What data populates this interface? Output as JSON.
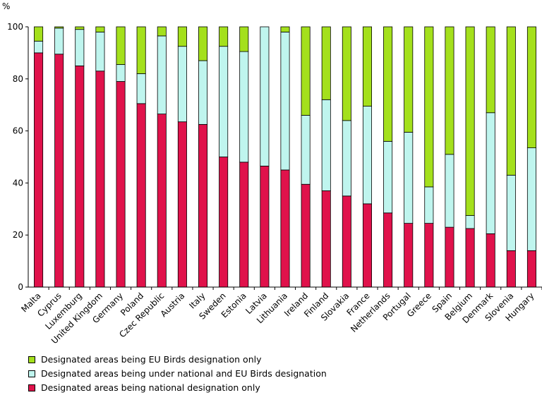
{
  "chart_data": {
    "type": "bar",
    "stacked": true,
    "ylabel": "%",
    "ylim": [
      0,
      100
    ],
    "yticks": [
      0,
      20,
      40,
      60,
      80,
      100
    ],
    "grid": false,
    "legend_position": "bottom-left",
    "categories": [
      "Malta",
      "Cyprus",
      "Luxemburg",
      "United Kingdom",
      "Germany",
      "Poland",
      "Czec Republic",
      "Austria",
      "Italy",
      "Sweden",
      "Estonia",
      "Latvia",
      "Lithuania",
      "Ireland",
      "Finland",
      "Slovakia",
      "France",
      "Netherlands",
      "Portugal",
      "Greece",
      "Spain",
      "Belgium",
      "Denmark",
      "Slovenia",
      "Hungary"
    ],
    "series": [
      {
        "name": "Designated areas being national designation only",
        "color": "#e0124b",
        "values": [
          90,
          89.5,
          85,
          83,
          79,
          70.5,
          66.5,
          63.5,
          62.5,
          50,
          48,
          46.5,
          45,
          39.5,
          37,
          35,
          32,
          28.5,
          24.5,
          24.5,
          23,
          22.5,
          20.5,
          14,
          14
        ]
      },
      {
        "name": "Designated areas being under national and EU Birds designation",
        "color": "#bff5ee",
        "values": [
          4.5,
          10,
          14,
          15,
          6.5,
          11.5,
          30,
          29,
          24.5,
          42.5,
          42.5,
          53.5,
          53,
          26.5,
          35,
          29,
          37.5,
          27.5,
          35,
          14,
          28,
          5,
          46.5,
          29,
          39.5
        ]
      },
      {
        "name": "Designated areas being EU Birds designation only",
        "color": "#a4e01c",
        "values": [
          5.5,
          0.5,
          1,
          2,
          14.5,
          18,
          3.5,
          7.5,
          13,
          7.5,
          9.5,
          0,
          2,
          34,
          28,
          36,
          30.5,
          44,
          40.5,
          61.5,
          49,
          72.5,
          33,
          57,
          46.5
        ]
      }
    ],
    "legend": [
      {
        "label": "Designated areas being EU Birds designation only",
        "color": "#a4e01c"
      },
      {
        "label": "Designated areas being under national and EU Birds designation",
        "color": "#bff5ee"
      },
      {
        "label": "Designated areas being national designation only",
        "color": "#e0124b"
      }
    ]
  }
}
